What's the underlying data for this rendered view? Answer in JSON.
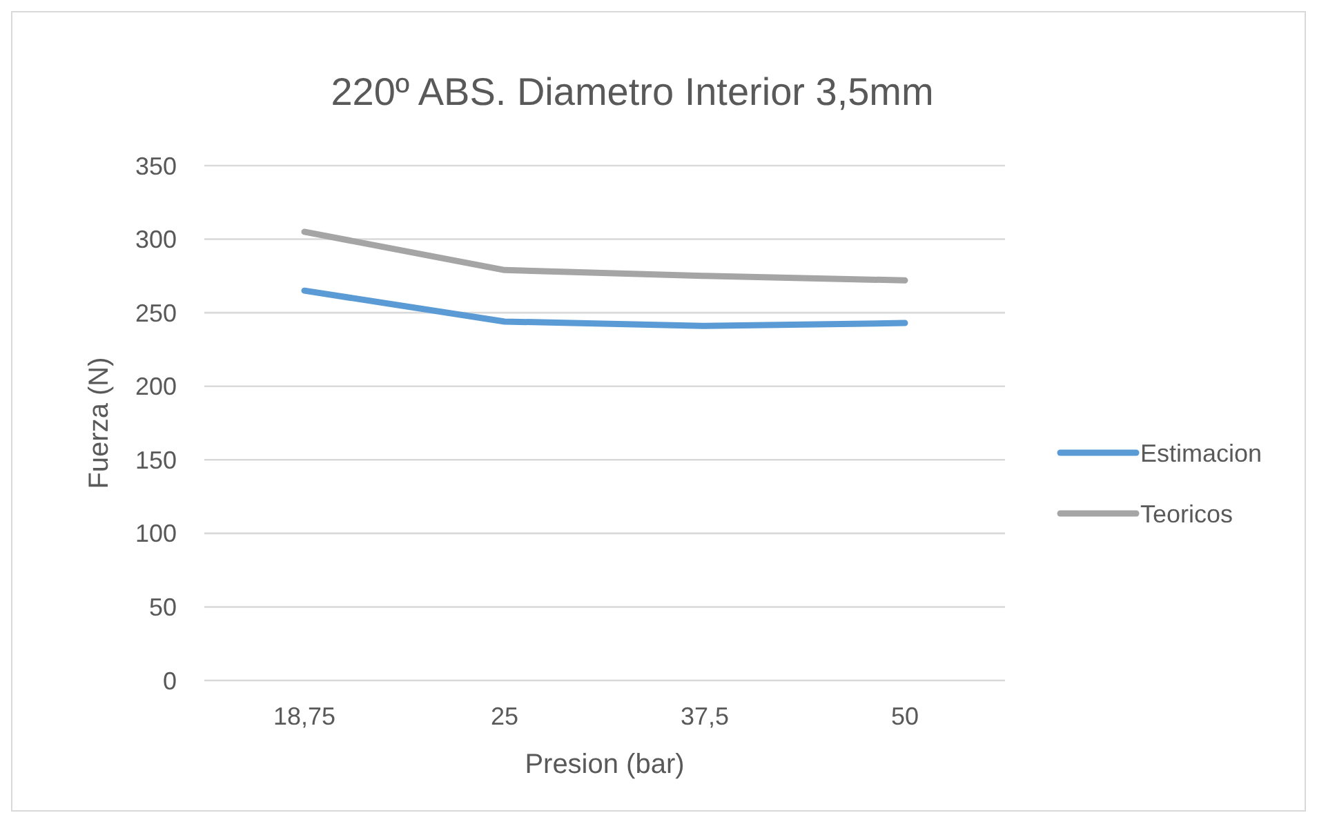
{
  "chart_data": {
    "type": "line",
    "title": "220º ABS. Diametro Interior 3,5mm",
    "xlabel": "Presion (bar)",
    "ylabel": "Fuerza (N)",
    "categories": [
      "18,75",
      "25",
      "37,5",
      "50"
    ],
    "series": [
      {
        "name": "Estimacion",
        "color": "#5b9bd5",
        "values": [
          265,
          244,
          241,
          243
        ]
      },
      {
        "name": "Teoricos",
        "color": "#a5a5a5",
        "values": [
          305,
          279,
          275,
          272
        ]
      }
    ],
    "ylim": [
      0,
      350
    ],
    "yticks": [
      0,
      50,
      100,
      150,
      200,
      250,
      300,
      350
    ],
    "grid": "y",
    "legend": "right",
    "marker": "none",
    "line_style": "solid"
  }
}
